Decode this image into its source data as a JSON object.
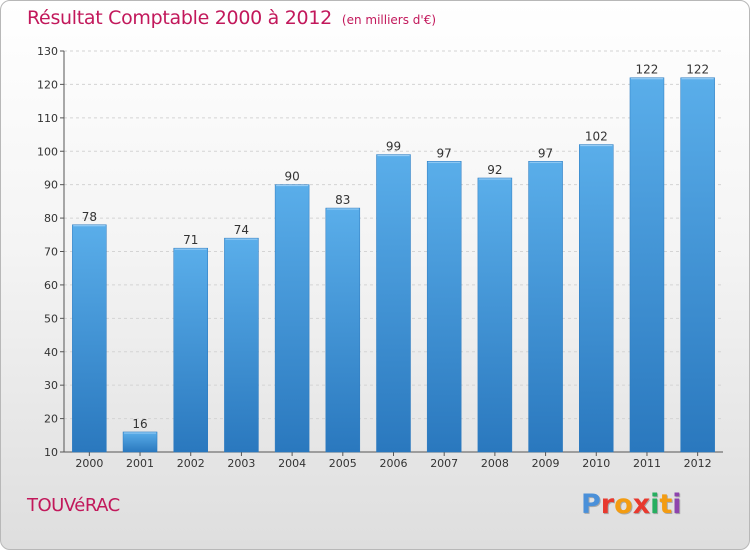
{
  "title": "Résultat Comptable 2000 à 2012",
  "subtitle": "(en milliers d'€)",
  "commune": "TOUVéRAC",
  "logo": {
    "letters": [
      "P",
      "r",
      "o",
      "x",
      "i",
      "t",
      "i"
    ],
    "colors": [
      "#4a90d9",
      "#e8392e",
      "#f39c12",
      "#e8392e",
      "#27ae60",
      "#f39c12",
      "#8e44ad"
    ]
  },
  "colors": {
    "bar": "#4a9fe0",
    "bar_dark": "#2a7fc2",
    "title": "#c2185b"
  },
  "chart_data": {
    "type": "bar",
    "title": "Résultat Comptable 2000 à 2012",
    "xlabel": "",
    "ylabel": "",
    "categories": [
      "2000",
      "2001",
      "2002",
      "2003",
      "2004",
      "2005",
      "2006",
      "2007",
      "2008",
      "2009",
      "2010",
      "2011",
      "2012"
    ],
    "values": [
      78,
      16,
      71,
      74,
      90,
      83,
      99,
      97,
      92,
      97,
      102,
      122,
      122
    ],
    "ylim": [
      10,
      130
    ],
    "yticks": [
      10,
      20,
      30,
      40,
      50,
      60,
      70,
      80,
      90,
      100,
      110,
      120,
      130
    ],
    "grid": true
  }
}
